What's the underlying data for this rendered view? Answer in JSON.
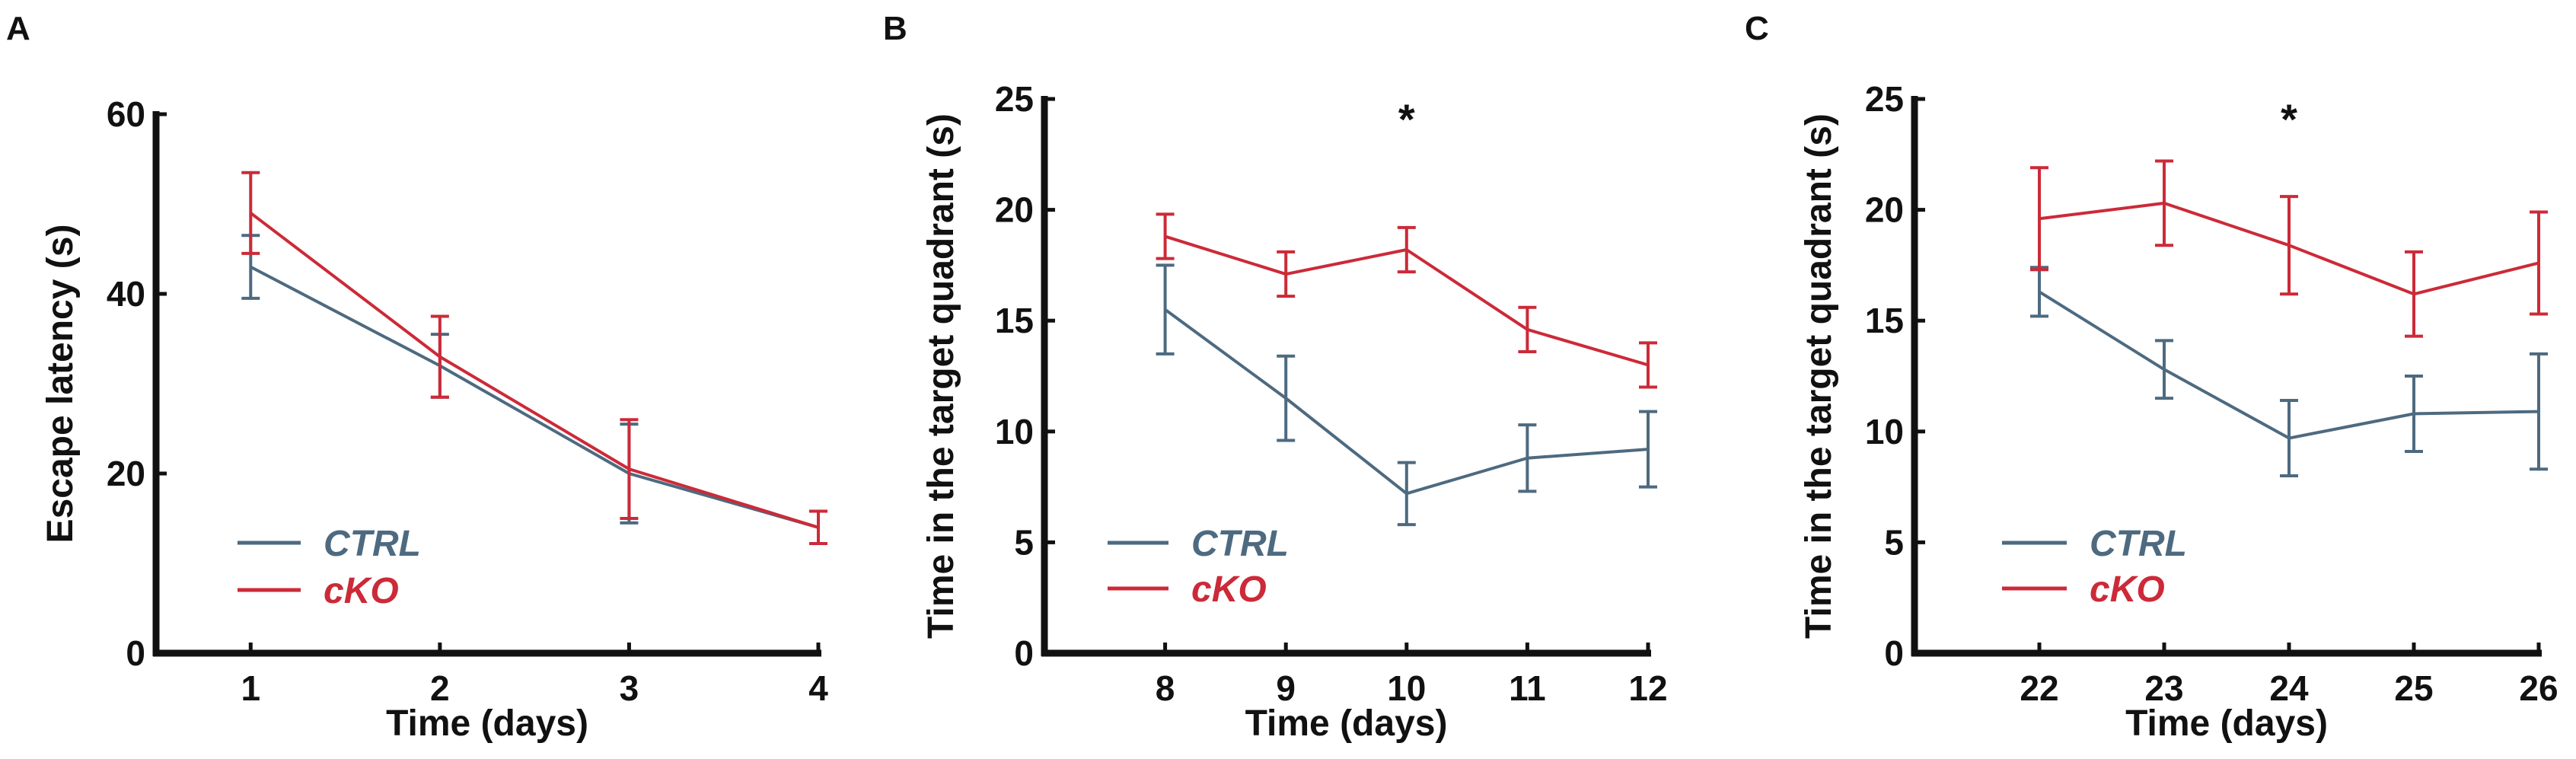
{
  "colors": {
    "ctrl": "#4d6a80",
    "cko": "#cc2a38",
    "axis": "#111111"
  },
  "chart_data": [
    {
      "panel": "A",
      "type": "line",
      "title": "",
      "xlabel": "Time (days)",
      "ylabel": "Escape latency (s)",
      "x": [
        1,
        2,
        3,
        4
      ],
      "xticks": [
        "1",
        "2",
        "3",
        "4"
      ],
      "xlim": [
        0.5,
        4
      ],
      "ylim": [
        0,
        60
      ],
      "yticks": [
        "0",
        "20",
        "40",
        "60"
      ],
      "grid": false,
      "legend": "bottom-left",
      "significance": [],
      "series": [
        {
          "name": "CTRL",
          "color": "#4d6a80",
          "values": [
            43,
            32,
            20,
            14
          ],
          "errors": [
            3.5,
            3.5,
            5.5,
            1.8
          ]
        },
        {
          "name": "cKO",
          "color": "#cc2a38",
          "values": [
            49,
            33,
            20.5,
            14
          ],
          "errors": [
            4.5,
            4.5,
            5.5,
            1.8
          ]
        }
      ]
    },
    {
      "panel": "B",
      "type": "line",
      "title": "",
      "xlabel": "Time (days)",
      "ylabel": "Time in the target quadrant (s)",
      "x": [
        8,
        9,
        10,
        11,
        12
      ],
      "xticks": [
        "8",
        "9",
        "10",
        "11",
        "12"
      ],
      "xlim": [
        7,
        12
      ],
      "ylim": [
        0,
        25
      ],
      "yticks": [
        "0",
        "5",
        "10",
        "15",
        "20",
        "25"
      ],
      "grid": false,
      "legend": "bottom-left",
      "significance": [
        {
          "x": 10,
          "label": "*"
        }
      ],
      "series": [
        {
          "name": "CTRL",
          "color": "#4d6a80",
          "values": [
            15.5,
            11.5,
            7.2,
            8.8,
            9.2
          ],
          "errors": [
            2.0,
            1.9,
            1.4,
            1.5,
            1.7
          ]
        },
        {
          "name": "cKO",
          "color": "#cc2a38",
          "values": [
            18.8,
            17.1,
            18.2,
            14.6,
            13.0
          ],
          "errors": [
            1.0,
            1.0,
            1.0,
            1.0,
            1.0
          ]
        }
      ]
    },
    {
      "panel": "C",
      "type": "line",
      "title": "",
      "xlabel": "Time (days)",
      "ylabel": "Time in the target quadrant (s)",
      "x": [
        22,
        23,
        24,
        25,
        26
      ],
      "xticks": [
        "22",
        "23",
        "24",
        "25",
        "26"
      ],
      "xlim": [
        21,
        26
      ],
      "ylim": [
        0,
        25
      ],
      "yticks": [
        "0",
        "5",
        "10",
        "15",
        "20",
        "25"
      ],
      "grid": false,
      "legend": "bottom-left",
      "significance": [
        {
          "x": 24,
          "label": "*"
        }
      ],
      "series": [
        {
          "name": "CTRL",
          "color": "#4d6a80",
          "values": [
            16.3,
            12.8,
            9.7,
            10.8,
            10.9
          ],
          "errors": [
            1.1,
            1.3,
            1.7,
            1.7,
            2.6
          ]
        },
        {
          "name": "cKO",
          "color": "#cc2a38",
          "values": [
            19.6,
            20.3,
            18.4,
            16.2,
            17.6
          ],
          "errors": [
            2.3,
            1.9,
            2.2,
            1.9,
            2.3
          ]
        }
      ]
    }
  ]
}
